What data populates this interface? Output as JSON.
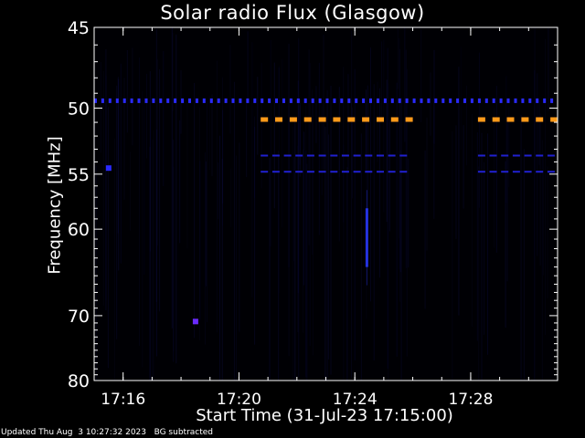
{
  "chart_data": {
    "type": "heatmap",
    "title": "Solar radio Flux (Glasgow)",
    "xlabel": "Start Time (31-Jul-23 17:15:00)",
    "ylabel": "Frequency [MHz]",
    "xlim": [
      "17:15:00",
      "17:31:00"
    ],
    "ylim_mhz": [
      45,
      80
    ],
    "y_scale": "reciprocal",
    "x_ticks": [
      "17:16",
      "17:20",
      "17:24",
      "17:28"
    ],
    "y_ticks": [
      45,
      50,
      55,
      60,
      70,
      80
    ],
    "colormap": [
      "#000000",
      "#0a0a2e",
      "#1a1a80",
      "#3030ff",
      "#7030ff",
      "#ff9a1a"
    ],
    "features": [
      {
        "name": "dotted-line",
        "freq_mhz": 49.5,
        "start": "17:15:00",
        "end": "17:31:00",
        "color": "#2a2aff",
        "dash_minutes": 0.25
      },
      {
        "name": "interference-band",
        "freq_mhz": 50.8,
        "start": "17:20:45",
        "end": "17:26:10",
        "color": "#ff9a1a",
        "dash_minutes": 0.5
      },
      {
        "name": "interference-band",
        "freq_mhz": 50.8,
        "start": "17:28:15",
        "end": "17:31:00",
        "color": "#ff9a1a",
        "dash_minutes": 0.5
      },
      {
        "name": "dashed-line",
        "freq_mhz": 53.5,
        "start": "17:20:45",
        "end": "17:26:10",
        "color": "#2020d0",
        "dash_minutes": 0.4
      },
      {
        "name": "dashed-line",
        "freq_mhz": 53.5,
        "start": "17:28:15",
        "end": "17:31:00",
        "color": "#2020d0",
        "dash_minutes": 0.4
      },
      {
        "name": "dashed-line",
        "freq_mhz": 54.8,
        "start": "17:20:45",
        "end": "17:26:10",
        "color": "#2020d0",
        "dash_minutes": 0.4
      },
      {
        "name": "dashed-line",
        "freq_mhz": 54.8,
        "start": "17:28:15",
        "end": "17:31:00",
        "color": "#2020d0",
        "dash_minutes": 0.4
      },
      {
        "name": "burst-streak",
        "time": "17:24:25",
        "freq_mhz": [
          58,
          64
        ],
        "color": "#2a3aff"
      },
      {
        "name": "spot",
        "time": "17:18:30",
        "freq_mhz": 70.8,
        "color": "#6a2aff"
      },
      {
        "name": "spot",
        "time": "17:15:30",
        "freq_mhz": 54.5,
        "color": "#2a2aff"
      }
    ]
  },
  "footer": "Updated Thu Aug  3 10:27:32 2023   BG subtracted"
}
